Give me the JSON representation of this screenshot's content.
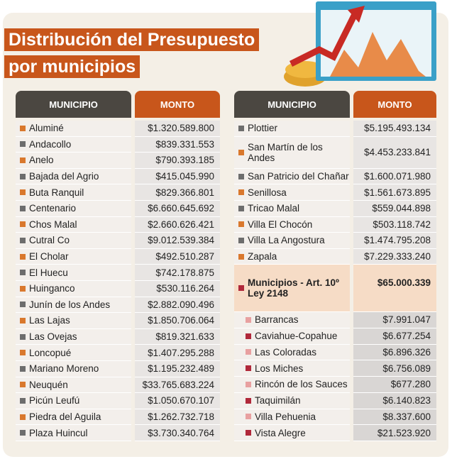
{
  "title": [
    "Distribución del Presupuesto",
    "por municipios"
  ],
  "headers": {
    "municipio": "MUNICIPIO",
    "monto": "MONTO"
  },
  "left": [
    [
      "Aluminé",
      "$1.320.589.800"
    ],
    [
      "Andacollo",
      "$839.331.553"
    ],
    [
      "Anelo",
      "$790.393.185"
    ],
    [
      "Bajada del Agrio",
      "$415.045.990"
    ],
    [
      "Buta Ranquil",
      "$829.366.801"
    ],
    [
      "Centenario",
      "$6.660.645.692"
    ],
    [
      "Chos Malal",
      "$2.660.626.421"
    ],
    [
      "Cutral Co",
      "$9.012.539.384"
    ],
    [
      "El Cholar",
      "$492.510.287"
    ],
    [
      "El Huecu",
      "$742.178.875"
    ],
    [
      "Huinganco",
      "$530.116.264"
    ],
    [
      "Junín de los Andes",
      "$2.882.090.496"
    ],
    [
      "Las Lajas",
      "$1.850.706.064"
    ],
    [
      "Las Ovejas",
      "$819.321.633"
    ],
    [
      "Loncopué",
      "$1.407.295.288"
    ],
    [
      "Mariano Moreno",
      "$1.195.232.489"
    ],
    [
      "Neuquén",
      "$33.765.683.224"
    ],
    [
      "Picún Leufú",
      "$1.050.670.107"
    ],
    [
      "Piedra del Aguila",
      "$1.262.732.718"
    ],
    [
      "Plaza Huincul",
      "$3.730.340.764"
    ]
  ],
  "right": [
    [
      "Plottier",
      "$5.195.493.134"
    ],
    [
      "San Martín de los Andes",
      "$4.453.233.841"
    ],
    [
      "San Patricio del Chañar",
      "$1.600.071.980"
    ],
    [
      "Senillosa",
      "$1.561.673.895"
    ],
    [
      "Tricao Malal",
      "$559.044.898"
    ],
    [
      "Villa El Chocón",
      "$503.118.742"
    ],
    [
      "Villa La Angostura",
      "$1.474.795.208"
    ],
    [
      "Zapala",
      "$7.229.333.240"
    ]
  ],
  "special": {
    "name": "Municipios - Art. 10º Ley 2148",
    "monto": "$65.000.339"
  },
  "sub": [
    [
      "Barrancas",
      "$7.991.047"
    ],
    [
      "Caviahue-Copahue",
      "$6.677.254"
    ],
    [
      "Las Coloradas",
      "$6.896.326"
    ],
    [
      "Los Miches",
      "$6.756.089"
    ],
    [
      "Rincón de los Sauces",
      "$677.280"
    ],
    [
      "Taquimilán",
      "$6.140.823"
    ],
    [
      "Villa Pehuenia",
      "$8.337.600"
    ],
    [
      "Vista Alegre",
      "$21.523.920"
    ]
  ]
}
